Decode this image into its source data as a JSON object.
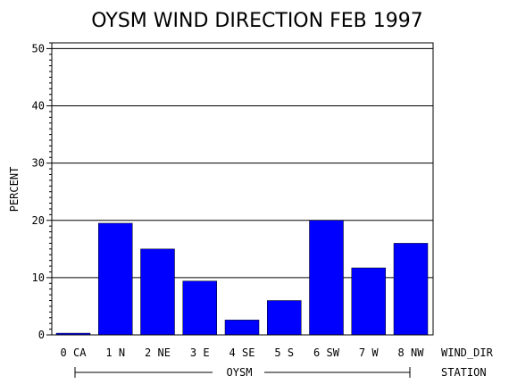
{
  "chart_data": {
    "type": "bar",
    "title": "OYSM WIND DIRECTION FEB 1997",
    "ylabel": "PERCENT",
    "xlabel": "WIND_DIR",
    "station_label": "STATION",
    "group_label": "OYSM",
    "ylim": [
      0,
      51
    ],
    "yticks": [
      0,
      10,
      20,
      30,
      40,
      50
    ],
    "grid": true,
    "categories": [
      "0 CA",
      "1 N",
      "2 NE",
      "3 E",
      "4 SE",
      "5 S",
      "6 SW",
      "7 W",
      "8 NW"
    ],
    "values": [
      0.3,
      19.5,
      15.0,
      9.4,
      2.6,
      6.0,
      20.0,
      11.7,
      16.0
    ],
    "colors": {
      "bar": "#0000ff",
      "axis": "#000000",
      "grid": "#000000"
    }
  }
}
